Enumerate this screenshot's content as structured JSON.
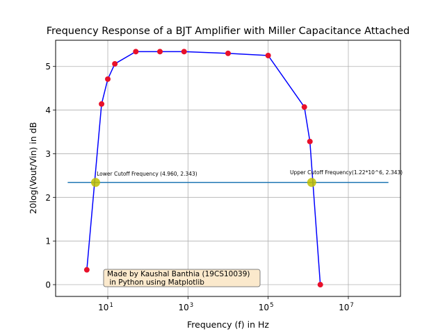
{
  "chart_data": {
    "type": "line",
    "title": "Frequency Response of a BJT Amplifier with Miller Capacitance Attached",
    "xlabel": "Frequency (f) in Hz",
    "ylabel": "20log(Vout/Vin) in dB",
    "xscale": "log",
    "xlim": [
      0.5,
      200000000
    ],
    "ylim": [
      -0.27,
      5.6
    ],
    "grid": true,
    "x_ticks": [
      {
        "value": 10,
        "base": "10",
        "exp": "1"
      },
      {
        "value": 1000,
        "base": "10",
        "exp": "3"
      },
      {
        "value": 100000,
        "base": "10",
        "exp": "5"
      },
      {
        "value": 10000000,
        "base": "10",
        "exp": "7"
      }
    ],
    "y_ticks": [
      0,
      1,
      2,
      3,
      4,
      5
    ],
    "series": [
      {
        "type": "line",
        "color": "#0000ff",
        "marker_color": "#e8102a",
        "x": [
          3,
          7,
          10,
          15,
          50,
          200,
          800,
          10000,
          100000,
          800000,
          1100000,
          2000000
        ],
        "y": [
          0.34,
          4.14,
          4.71,
          5.06,
          5.34,
          5.34,
          5.34,
          5.3,
          5.25,
          4.07,
          3.28,
          0.0
        ]
      },
      {
        "type": "hline",
        "color": "#1f77b4",
        "x": [
          1,
          100000000
        ],
        "y": [
          2.343,
          2.343
        ]
      }
    ],
    "highlight_points": [
      {
        "x": 4.96,
        "y": 2.343,
        "color": "#bfbf00"
      },
      {
        "x": 1220000,
        "y": 2.343,
        "color": "#bfbf00"
      }
    ],
    "annotations": [
      {
        "text": "Lower Cutoff Frequency (4.960, 2.343)",
        "x": 5.3,
        "y": 2.5
      },
      {
        "text": "Upper Cutoff Frequency(1.22*10^6, 2.343)",
        "x": 350000,
        "y": 2.53
      }
    ],
    "note_box": {
      "lines": [
        "Made by Kaushal Banthia (19CS10039)",
        " in Python using Matplotlib"
      ],
      "background": "#fbe9cc",
      "border": "#7f7f7f"
    }
  }
}
